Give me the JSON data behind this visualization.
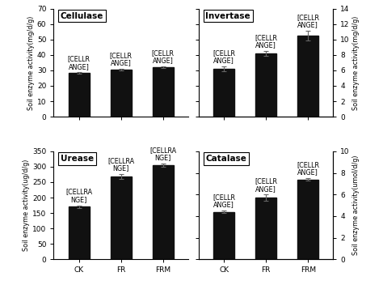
{
  "panels": [
    {
      "title": "Cellulase",
      "ylabel_left": "Soil enzyme activity(mg/d/g)",
      "ylabel_right": null,
      "categories": [
        "CK",
        "FR",
        "FRM"
      ],
      "values": [
        28.2,
        30.5,
        32.2
      ],
      "errors": [
        0.5,
        0.4,
        0.5
      ],
      "ylim": [
        0,
        70
      ],
      "yticks": [
        0,
        10,
        20,
        30,
        40,
        50,
        60,
        70
      ],
      "annotations": [
        "[CELLR\nANGE]",
        "[CELLR\nANGE]",
        "[CELLR\nANGE]"
      ],
      "row": 0,
      "col": 0
    },
    {
      "title": "Invertase",
      "ylabel_left": null,
      "ylabel_right": "Soil enzyme activity(mg/d/g)",
      "categories": [
        "CK",
        "FR",
        "FRM"
      ],
      "values": [
        6.2,
        8.2,
        10.5
      ],
      "errors": [
        0.3,
        0.3,
        0.6
      ],
      "ylim": [
        0,
        14
      ],
      "yticks": [
        0,
        2,
        4,
        6,
        8,
        10,
        12,
        14
      ],
      "annotations": [
        "[CELLR\nANGE]",
        "[CELLR\nANGE]",
        "[CELLR\nANGE]"
      ],
      "row": 0,
      "col": 1
    },
    {
      "title": "Urease",
      "ylabel_left": "Soil enzyme activity(ug/d/g)",
      "ylabel_right": null,
      "categories": [
        "CK",
        "FR",
        "FRM"
      ],
      "values": [
        170,
        268,
        305
      ],
      "errors": [
        5,
        8,
        6
      ],
      "ylim": [
        0,
        350
      ],
      "yticks": [
        0,
        50,
        100,
        150,
        200,
        250,
        300,
        350
      ],
      "annotations": [
        "[CELLRA\nNGE]",
        "[CELLRA\nNGE]",
        "[CELLRA\nNGE]"
      ],
      "row": 1,
      "col": 0
    },
    {
      "title": "Catalase",
      "ylabel_left": null,
      "ylabel_right": "Soil enzyme activity(umol/d/g)",
      "categories": [
        "CK",
        "FR",
        "FRM"
      ],
      "values": [
        4.4,
        5.7,
        7.4
      ],
      "errors": [
        0.12,
        0.28,
        0.14
      ],
      "ylim": [
        0,
        10
      ],
      "yticks": [
        0,
        2,
        4,
        6,
        8,
        10
      ],
      "annotations": [
        "[CELLR\nANGE]",
        "[CELLR\nANGE]",
        "[CELLR\nANGE]"
      ],
      "row": 1,
      "col": 1
    }
  ],
  "bar_color": "#111111",
  "bar_width": 0.5,
  "tick_fontsize": 6.5,
  "label_fontsize": 5.8,
  "title_fontsize": 7.5,
  "annot_fontsize": 5.8,
  "background_color": "#ffffff"
}
